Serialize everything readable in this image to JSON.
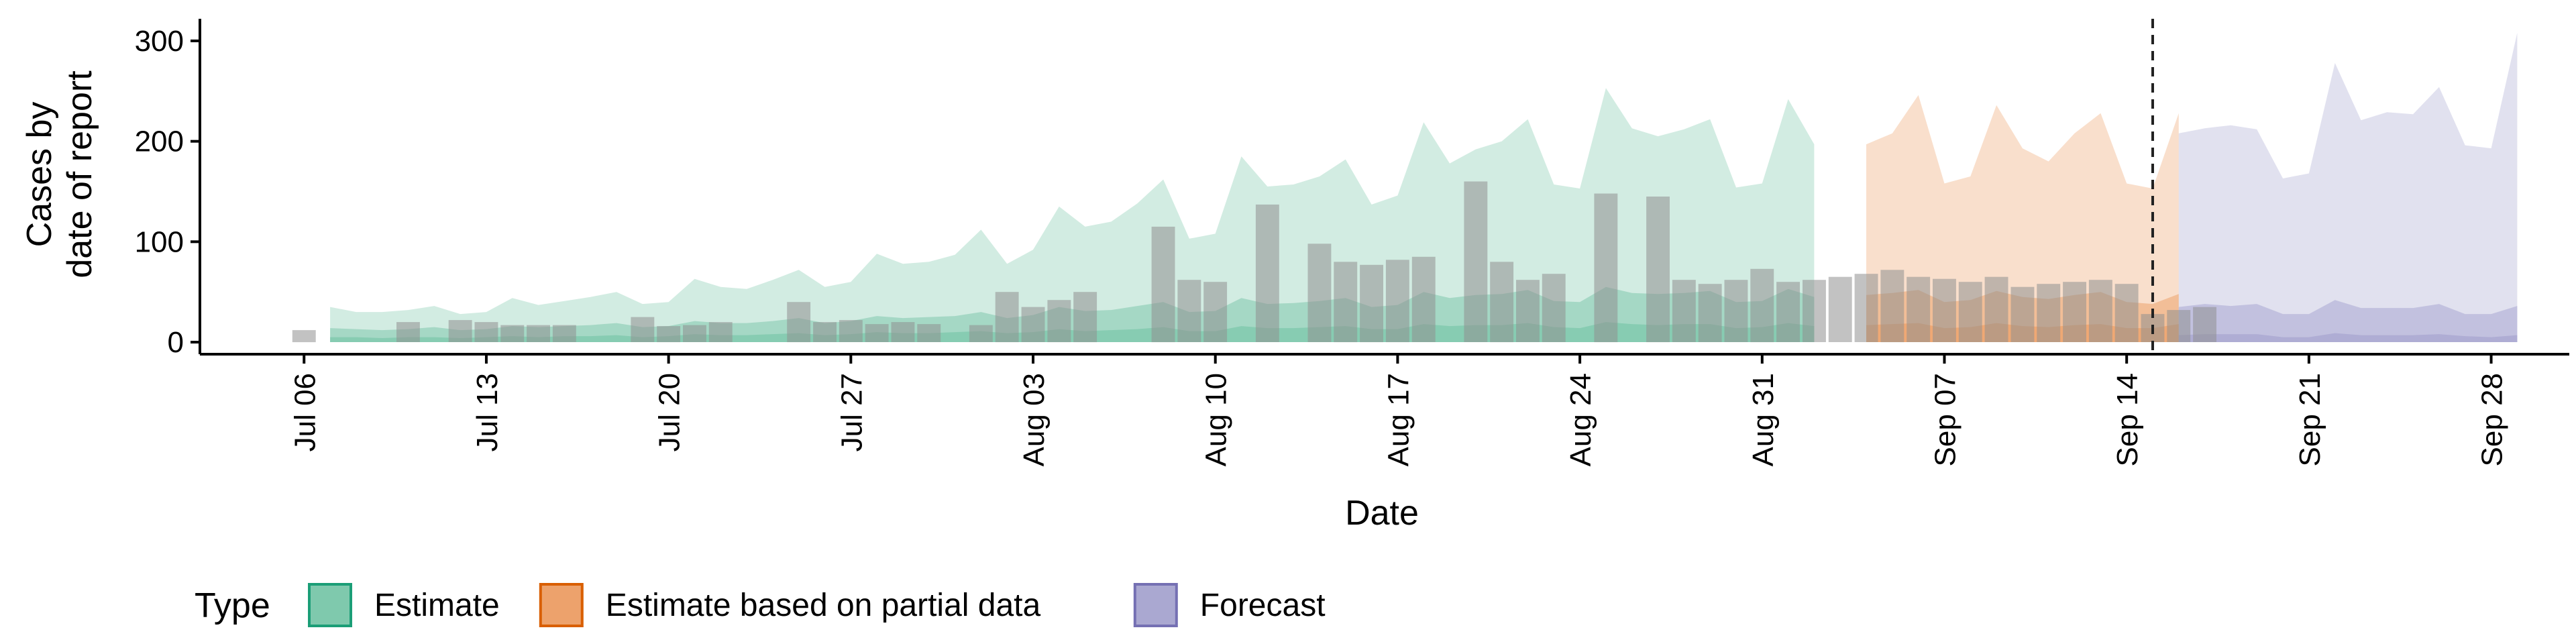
{
  "chart_data": {
    "type": "area",
    "xlabel": "Date",
    "ylabel_lines": [
      "Cases by",
      "date of report"
    ],
    "x_ticks": [
      "Jul 06",
      "Jul 13",
      "Jul 20",
      "Jul 27",
      "Aug 03",
      "Aug 10",
      "Aug 17",
      "Aug 24",
      "Aug 31",
      "Sep 07",
      "Sep 14",
      "Sep 21",
      "Sep 28"
    ],
    "x_tick_dates": [
      "2020-07-06",
      "2020-07-13",
      "2020-07-20",
      "2020-07-27",
      "2020-08-03",
      "2020-08-10",
      "2020-08-17",
      "2020-08-24",
      "2020-08-31",
      "2020-09-07",
      "2020-09-14",
      "2020-09-21",
      "2020-09-28"
    ],
    "xlim": [
      "2020-07-02",
      "2020-10-01"
    ],
    "y_ticks": [
      0,
      100,
      200,
      300
    ],
    "ylim": [
      -12,
      322
    ],
    "forecast_line_date": "2020-09-15",
    "legend_title": "Type",
    "legend_position": "bottom",
    "legend": [
      {
        "label": "Estimate",
        "fill": "#7fc9ad",
        "stroke": "#1b9e77"
      },
      {
        "label": "Estimate based on partial data",
        "fill": "#eda26c",
        "stroke": "#d95f02"
      },
      {
        "label": "Forecast",
        "fill": "#aaa8d1",
        "stroke": "#7570b3"
      }
    ],
    "observed_bars": {
      "start": "2020-07-06",
      "values": [
        12,
        0,
        0,
        0,
        20,
        0,
        22,
        20,
        17,
        17,
        17,
        0,
        0,
        25,
        16,
        17,
        20,
        0,
        0,
        40,
        20,
        22,
        18,
        20,
        18,
        0,
        17,
        50,
        35,
        42,
        50,
        0,
        0,
        115,
        62,
        60,
        0,
        137,
        0,
        98,
        80,
        77,
        82,
        85,
        0,
        160,
        80,
        62,
        68,
        0,
        148,
        0,
        145,
        62,
        58,
        62,
        73,
        60,
        62,
        65,
        68,
        72,
        65,
        63,
        60,
        65,
        55,
        58,
        60,
        62,
        58,
        28,
        32,
        35
      ]
    },
    "series": [
      {
        "name": "Estimate",
        "start": "2020-07-07",
        "upper": [
          35,
          30,
          30,
          32,
          36,
          28,
          30,
          44,
          37,
          41,
          45,
          50,
          38,
          40,
          63,
          55,
          53,
          62,
          72,
          55,
          60,
          88,
          78,
          80,
          87,
          112,
          78,
          92,
          135,
          115,
          120,
          138,
          162,
          103,
          108,
          185,
          155,
          157,
          165,
          182,
          137,
          146,
          219,
          178,
          192,
          200,
          222,
          157,
          153,
          253,
          213,
          205,
          212,
          222,
          154,
          158,
          242,
          197
        ],
        "mid_upper": [
          14,
          13,
          12,
          13,
          15,
          12,
          13,
          16,
          15,
          16,
          17,
          19,
          15,
          16,
          21,
          19,
          19,
          21,
          24,
          19,
          21,
          26,
          24,
          25,
          26,
          30,
          24,
          27,
          35,
          31,
          32,
          36,
          40,
          30,
          31,
          44,
          38,
          39,
          41,
          44,
          35,
          37,
          50,
          44,
          47,
          48,
          52,
          41,
          40,
          55,
          49,
          48,
          49,
          51,
          40,
          41,
          53,
          45
        ],
        "mid_lower": [
          5,
          5,
          4,
          5,
          5,
          4,
          5,
          6,
          5,
          6,
          6,
          7,
          5,
          6,
          8,
          7,
          7,
          8,
          9,
          7,
          8,
          10,
          9,
          9,
          10,
          11,
          9,
          10,
          13,
          11,
          12,
          13,
          15,
          11,
          11,
          16,
          14,
          14,
          15,
          16,
          13,
          13,
          18,
          16,
          17,
          17,
          19,
          15,
          14,
          20,
          18,
          17,
          18,
          18,
          14,
          15,
          19,
          16
        ]
      },
      {
        "name": "Estimate based on partial data",
        "start": "2020-09-04",
        "upper": [
          197,
          208,
          246,
          158,
          165,
          236,
          193,
          180,
          208,
          228,
          158,
          153,
          228
        ],
        "mid_upper": [
          47,
          49,
          52,
          40,
          42,
          51,
          45,
          43,
          47,
          50,
          40,
          38,
          48
        ],
        "mid_lower": [
          17,
          18,
          19,
          14,
          15,
          19,
          16,
          15,
          17,
          18,
          14,
          14,
          18
        ]
      },
      {
        "name": "Forecast",
        "start": "2020-09-16",
        "upper": [
          208,
          213,
          216,
          212,
          163,
          168,
          278,
          221,
          229,
          227,
          254,
          196,
          193,
          308
        ],
        "mid_upper": [
          35,
          38,
          36,
          38,
          28,
          28,
          42,
          34,
          34,
          34,
          38,
          28,
          28,
          36
        ],
        "mid_lower": [
          7,
          8,
          8,
          8,
          5,
          5,
          9,
          7,
          7,
          7,
          8,
          6,
          5,
          7
        ]
      }
    ]
  }
}
